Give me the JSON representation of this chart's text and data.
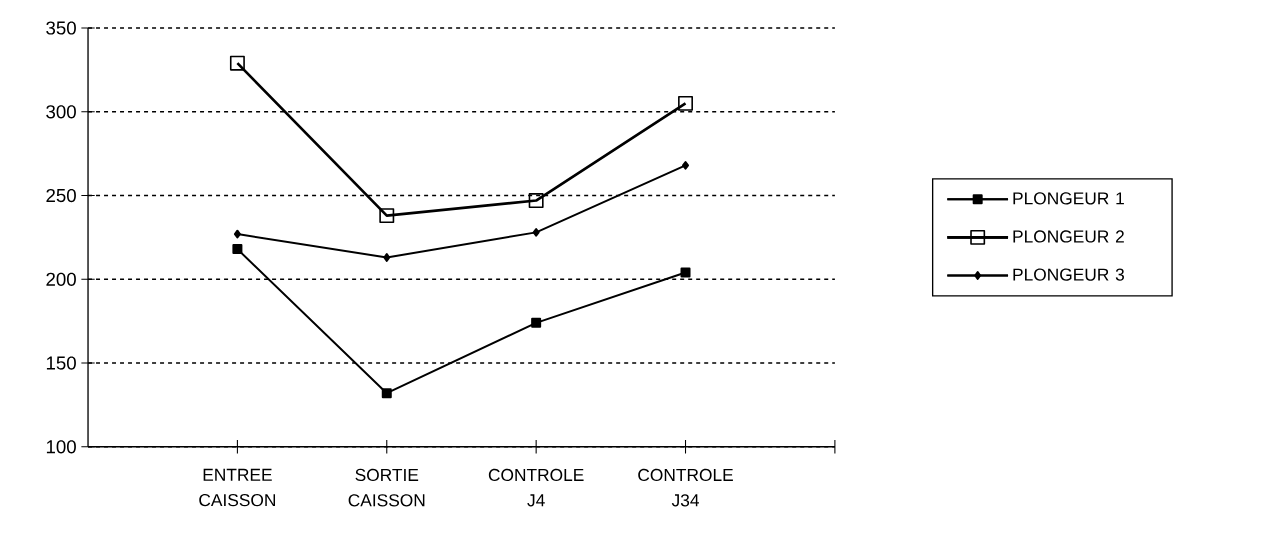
{
  "chart_data": {
    "type": "line",
    "categories": [
      "ENTREE CAISSON",
      "SORTIE CAISSON",
      "CONTROLE J4",
      "CONTROLE J34"
    ],
    "series": [
      {
        "name": "PLONGEUR 1",
        "color": "#000000",
        "marker": "square",
        "values": [
          218,
          132,
          174,
          204
        ]
      },
      {
        "name": "PLONGEUR 2",
        "color": "#000000",
        "marker": "square",
        "values": [
          329,
          238,
          247,
          305
        ]
      },
      {
        "name": "PLONGEUR 3",
        "color": "#000000",
        "marker": "diamond",
        "values": [
          227,
          213,
          228,
          268
        ]
      }
    ],
    "ylim": [
      100,
      350
    ],
    "yticks": [
      100,
      150,
      200,
      250,
      300,
      350
    ],
    "grid": "y",
    "legend": "right",
    "line_style": "solid"
  }
}
